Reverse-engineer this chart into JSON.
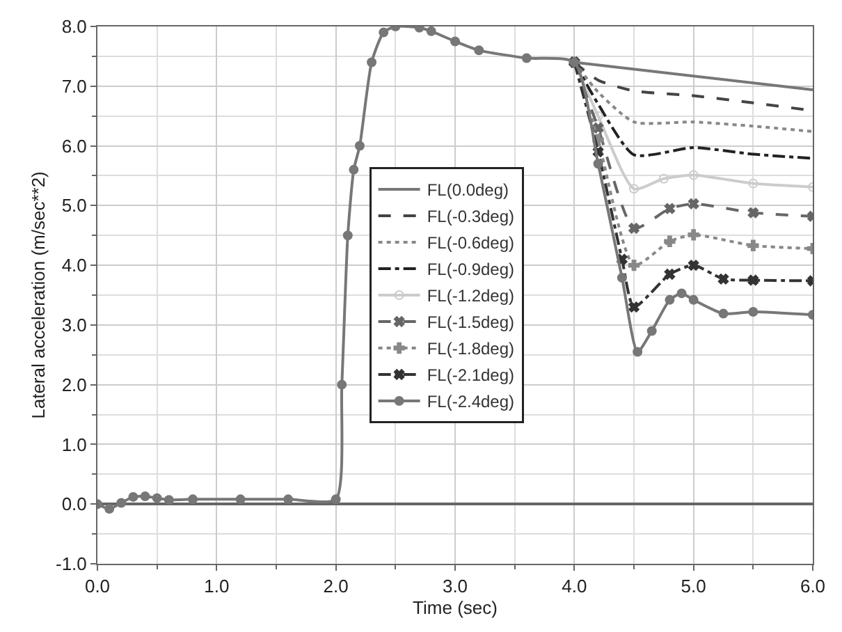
{
  "chart_data": {
    "type": "line",
    "xlabel": "Time (sec)",
    "ylabel": "Lateral acceleration (m/sec**2)",
    "xlim": [
      0,
      6
    ],
    "xticks": [
      {
        "value": 0,
        "label": "0.0"
      },
      {
        "value": 1,
        "label": "1.0"
      },
      {
        "value": 2,
        "label": "2.0"
      },
      {
        "value": 3,
        "label": "3.0"
      },
      {
        "value": 4,
        "label": "4.0"
      },
      {
        "value": 5,
        "label": "5.0"
      },
      {
        "value": 6,
        "label": "6.0"
      }
    ],
    "ylim": [
      -1,
      8
    ],
    "yticks": [
      {
        "value": -1,
        "label": "-1.0"
      },
      {
        "value": 0,
        "label": "0.0"
      },
      {
        "value": 1,
        "label": "1.0"
      },
      {
        "value": 2,
        "label": "2.0"
      },
      {
        "value": 3,
        "label": "3.0"
      },
      {
        "value": 4,
        "label": "4.0"
      },
      {
        "value": 5,
        "label": "5.0"
      },
      {
        "value": 6,
        "label": "6.0"
      },
      {
        "value": 7,
        "label": "7.0"
      },
      {
        "value": 8,
        "label": "8.0"
      }
    ],
    "grid": true,
    "legend": "center",
    "series": [
      {
        "name": "FL(0.0deg)",
        "color": "#777777",
        "line_style": "solid",
        "x": [
          4.0,
          6.0
        ],
        "values": [
          7.4,
          6.94
        ]
      },
      {
        "name": "FL(-0.3deg)",
        "color": "#444444",
        "line_style": "dashed",
        "x": [
          4.0,
          4.2,
          4.5,
          5.0,
          5.5,
          6.0
        ],
        "values": [
          7.4,
          7.1,
          6.92,
          6.84,
          6.72,
          6.59
        ]
      },
      {
        "name": "FL(-0.6deg)",
        "color": "#888888",
        "line_style": "dotted",
        "x": [
          4.0,
          4.2,
          4.5,
          5.0,
          5.5,
          6.0
        ],
        "values": [
          7.4,
          6.9,
          6.4,
          6.4,
          6.33,
          6.24
        ]
      },
      {
        "name": "FL(-0.9deg)",
        "color": "#222222",
        "line_style": "dashdot",
        "x": [
          4.0,
          4.2,
          4.5,
          5.0,
          5.5,
          6.0
        ],
        "values": [
          7.4,
          6.7,
          5.85,
          5.97,
          5.86,
          5.79
        ]
      },
      {
        "name": "FL(-1.2deg)",
        "color": "#cccccc",
        "line_style": "solid",
        "marker": "circle-open",
        "x": [
          4.0,
          4.2,
          4.5,
          4.75,
          5.0,
          5.5,
          6.0
        ],
        "values": [
          7.4,
          6.5,
          5.28,
          5.45,
          5.51,
          5.37,
          5.31
        ]
      },
      {
        "name": "FL(-1.5deg)",
        "color": "#666666",
        "line_style": "dashed",
        "marker": "x",
        "x": [
          4.0,
          4.2,
          4.5,
          4.8,
          5.0,
          5.5,
          6.0
        ],
        "values": [
          7.4,
          6.3,
          4.62,
          4.95,
          5.03,
          4.88,
          4.82
        ]
      },
      {
        "name": "FL(-1.8deg)",
        "color": "#888888",
        "line_style": "dotted",
        "marker": "cross",
        "x": [
          4.0,
          4.2,
          4.5,
          4.8,
          5.0,
          5.5,
          6.0
        ],
        "values": [
          7.4,
          6.1,
          4.0,
          4.4,
          4.51,
          4.33,
          4.28
        ]
      },
      {
        "name": "FL(-2.1deg)",
        "color": "#333333",
        "line_style": "dashdot",
        "marker": "x",
        "x": [
          4.0,
          4.2,
          4.4,
          4.5,
          4.8,
          5.0,
          5.25,
          5.5,
          6.0
        ],
        "values": [
          7.4,
          5.9,
          4.1,
          3.3,
          3.85,
          4.0,
          3.77,
          3.75,
          3.74
        ]
      },
      {
        "name": "FL(-2.4deg)",
        "color": "#777777",
        "line_style": "solid",
        "marker": "circle",
        "x": [
          0,
          0.1,
          0.2,
          0.3,
          0.4,
          0.5,
          0.6,
          0.8,
          1.2,
          1.6,
          2.0,
          2.05,
          2.1,
          2.15,
          2.2,
          2.3,
          2.4,
          2.5,
          2.7,
          2.8,
          3.0,
          3.2,
          3.6,
          4.0,
          4.2,
          4.4,
          4.53,
          4.65,
          4.8,
          4.9,
          5.0,
          5.25,
          5.5,
          6.0
        ],
        "values": [
          0,
          -0.08,
          0.02,
          0.12,
          0.13,
          0.1,
          0.07,
          0.08,
          0.08,
          0.08,
          0.08,
          2.0,
          4.5,
          5.6,
          6.0,
          7.4,
          7.9,
          8.0,
          7.98,
          7.92,
          7.75,
          7.6,
          7.47,
          7.4,
          5.7,
          3.79,
          2.55,
          2.9,
          3.42,
          3.53,
          3.42,
          3.19,
          3.22,
          3.17
        ]
      }
    ]
  }
}
